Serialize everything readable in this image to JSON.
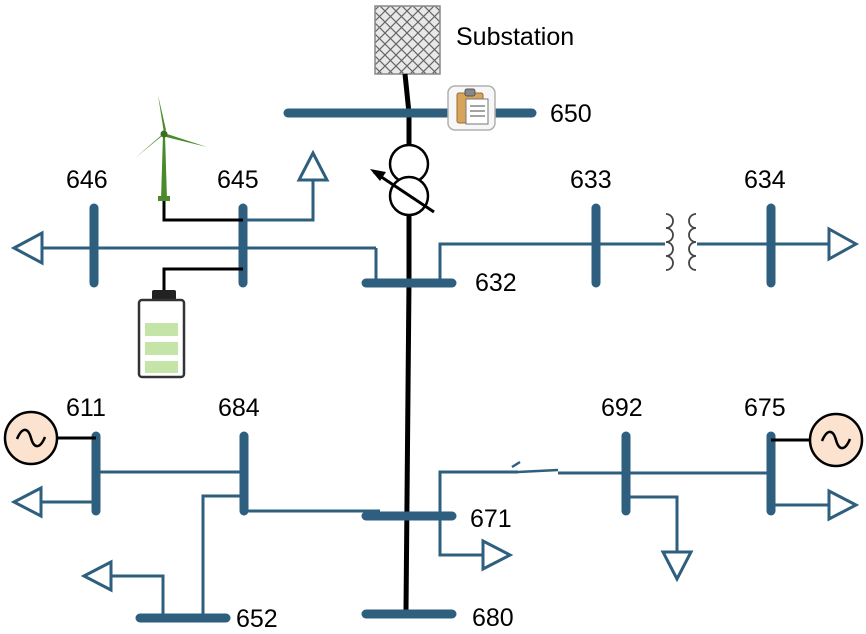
{
  "substation": {
    "label": "Substation"
  },
  "buses": {
    "b650": "650",
    "b646": "646",
    "b645": "645",
    "b633": "633",
    "b634": "634",
    "b632": "632",
    "b611": "611",
    "b684": "684",
    "b692": "692",
    "b675": "675",
    "b671": "671",
    "b652": "652",
    "b680": "680"
  },
  "icons": {
    "substation": "crosshatch-box-icon",
    "clipboard": "clipboard-icon",
    "regulator": "voltage-regulator-icon",
    "transformer": "transformer-icon",
    "wind": "wind-turbine-icon",
    "battery": "battery-icon",
    "generator": "generator-icon",
    "switch": "switch-icon",
    "load": "load-arrow-icon"
  },
  "colors": {
    "bus": "#2e5f7e",
    "main_feeder": "#000000",
    "generator_fill": "#fbe3cf",
    "battery_cell": "#c5e5a8",
    "turbine": "#4a8a2a"
  }
}
